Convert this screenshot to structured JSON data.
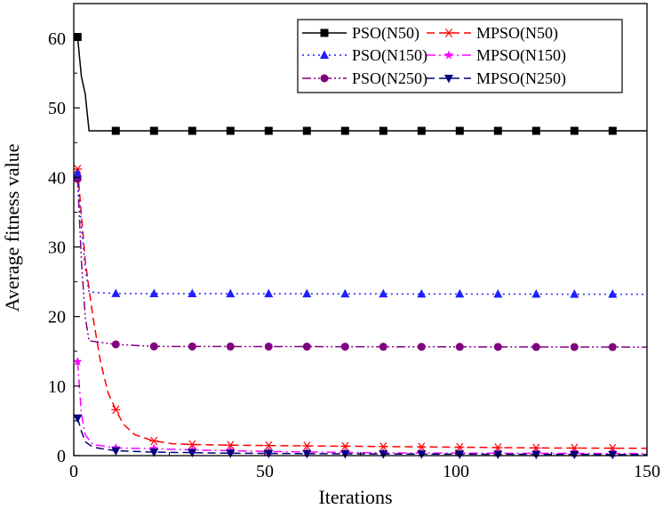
{
  "chart_data": {
    "type": "line",
    "title": "",
    "xlabel": "Iterations",
    "ylabel": "Average fitness value",
    "xlim": [
      0,
      150
    ],
    "ylim": [
      0,
      65
    ],
    "x_ticks": [
      0,
      50,
      100,
      150
    ],
    "y_ticks": [
      0,
      10,
      20,
      30,
      40,
      50,
      60
    ],
    "grid": false,
    "legend_position": "top-right",
    "legend_columns": 2,
    "series": [
      {
        "name": "PSO(N50)",
        "color": "#000000",
        "dash": "solid",
        "marker": "square",
        "points": [
          [
            1,
            60.2
          ],
          [
            2,
            54.5
          ],
          [
            3,
            52
          ],
          [
            4,
            46.7
          ],
          [
            150,
            46.7
          ]
        ],
        "marker_x": [
          1,
          11,
          21,
          31,
          41,
          51,
          61,
          71,
          81,
          91,
          101,
          111,
          121,
          131,
          141
        ]
      },
      {
        "name": "PSO(N150)",
        "color": "#1f1fff",
        "dash": "dot",
        "marker": "triangle-up",
        "points": [
          [
            1,
            40.6
          ],
          [
            2,
            33
          ],
          [
            3,
            27
          ],
          [
            4,
            23.5
          ],
          [
            11,
            23.3
          ],
          [
            150,
            23.2
          ]
        ],
        "marker_x": [
          1,
          11,
          21,
          31,
          41,
          51,
          61,
          71,
          81,
          91,
          101,
          111,
          121,
          131,
          141
        ]
      },
      {
        "name": "PSO(N250)",
        "color": "#800080",
        "dash": "dashdotdot",
        "marker": "circle",
        "points": [
          [
            1,
            39.8
          ],
          [
            2,
            28
          ],
          [
            3,
            20
          ],
          [
            4,
            16.5
          ],
          [
            11,
            16
          ],
          [
            21,
            15.7
          ],
          [
            150,
            15.6
          ]
        ],
        "marker_x": [
          1,
          11,
          21,
          31,
          41,
          51,
          61,
          71,
          81,
          91,
          101,
          111,
          121,
          131,
          141
        ]
      },
      {
        "name": "MPSO(N50)",
        "color": "#ff0000",
        "dash": "dash",
        "marker": "asterisk",
        "points": [
          [
            1,
            41.2
          ],
          [
            3,
            28
          ],
          [
            5,
            20
          ],
          [
            7,
            13.5
          ],
          [
            9,
            9
          ],
          [
            11,
            6.6
          ],
          [
            13,
            4.5
          ],
          [
            16,
            3
          ],
          [
            21,
            2.1
          ],
          [
            26,
            1.7
          ],
          [
            31,
            1.6
          ],
          [
            41,
            1.5
          ],
          [
            61,
            1.4
          ],
          [
            81,
            1.3
          ],
          [
            101,
            1.2
          ],
          [
            121,
            1.1
          ],
          [
            150,
            1.05
          ]
        ],
        "marker_x": [
          1,
          11,
          21,
          31,
          41,
          51,
          61,
          71,
          81,
          91,
          101,
          111,
          121,
          131,
          141
        ]
      },
      {
        "name": "MPSO(N150)",
        "color": "#ff00ff",
        "dash": "dashdot",
        "marker": "star",
        "points": [
          [
            1,
            13.5
          ],
          [
            2,
            6
          ],
          [
            3,
            3
          ],
          [
            5,
            1.6
          ],
          [
            11,
            1.1
          ],
          [
            21,
            1.0
          ],
          [
            31,
            0.8
          ],
          [
            51,
            0.6
          ],
          [
            81,
            0.4
          ],
          [
            111,
            0.35
          ],
          [
            150,
            0.3
          ]
        ],
        "marker_x": [
          1,
          11,
          21,
          31,
          41,
          51,
          61,
          71,
          81,
          91,
          101,
          111,
          121,
          131,
          141
        ]
      },
      {
        "name": "MPSO(N250)",
        "color": "#000080",
        "dash": "dash",
        "marker": "triangle-down",
        "points": [
          [
            1,
            5.4
          ],
          [
            2,
            3.5
          ],
          [
            3,
            2
          ],
          [
            5,
            1.2
          ],
          [
            11,
            0.7
          ],
          [
            21,
            0.5
          ],
          [
            41,
            0.35
          ],
          [
            71,
            0.25
          ],
          [
            101,
            0.2
          ],
          [
            150,
            0.15
          ]
        ],
        "marker_x": [
          1,
          11,
          21,
          31,
          41,
          51,
          61,
          71,
          81,
          91,
          101,
          111,
          121,
          131,
          141
        ]
      }
    ]
  }
}
